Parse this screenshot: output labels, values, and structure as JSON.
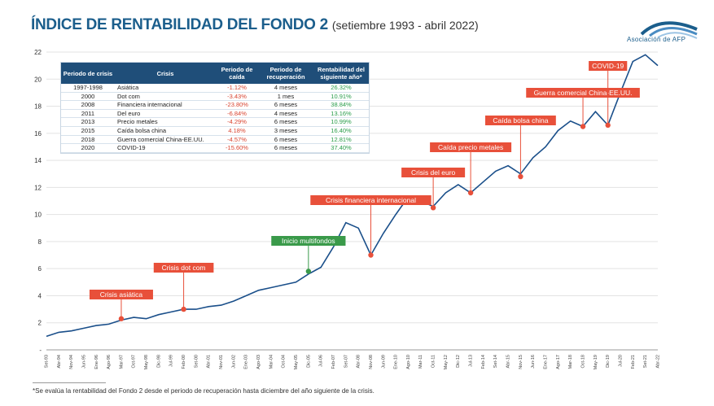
{
  "header": {
    "title": "ÍNDICE DE RENTABILIDAD DEL FONDO 2",
    "subtitle": "(setiembre 1993 - abril 2022)",
    "logo_text": "Asociación de AFP"
  },
  "table": {
    "headers": [
      "Periodo de crisis",
      "Crisis",
      "Periodo de caída",
      "Periodo de recuperación",
      "Rentabilidad del siguiente año*"
    ],
    "rows": [
      [
        "1997-1998",
        "Asiática",
        "-1.12%",
        "4 meses",
        "26.32%"
      ],
      [
        "2000",
        "Dot com",
        "-3.43%",
        "1 mes",
        "10.91%"
      ],
      [
        "2008",
        "Financiera internacional",
        "-23.80%",
        "6 meses",
        "38.84%"
      ],
      [
        "2011",
        "Del euro",
        "-6.84%",
        "4 meses",
        "13.16%"
      ],
      [
        "2013",
        "Precio metales",
        "-4.29%",
        "6 meses",
        "10.99%"
      ],
      [
        "2015",
        "Caída bolsa china",
        "4.18%",
        "3 meses",
        "16.40%"
      ],
      [
        "2018",
        "Guerra comercial China-EE.UU.",
        "-4.57%",
        "6 meses",
        "12.81%"
      ],
      [
        "2020",
        "COVID-19",
        "-15.60%",
        "6 meses",
        "37.40%"
      ]
    ]
  },
  "footnote": "*Se evalúa la rentabilidad del Fondo 2 desde el periodo de recuperación hasta diciembre del año siguiente de la crisis.",
  "colors": {
    "line": "#1a4f8a",
    "crisis": "#e8503a",
    "multifondos": "#3a9a4a",
    "header": "#1f4e79"
  },
  "chart_data": {
    "type": "line",
    "title": "ÍNDICE DE RENTABILIDAD DEL FONDO 2",
    "ylim": [
      0,
      22
    ],
    "y_ticks": [
      "-",
      "2",
      "4",
      "6",
      "8",
      "10",
      "12",
      "14",
      "16",
      "18",
      "20",
      "22"
    ],
    "x_ticks": [
      "Set-93",
      "Abr-94",
      "Nov-94",
      "Jun-95",
      "Ene-96",
      "Ago-96",
      "Mar-97",
      "Oct-97",
      "May-98",
      "Dic-98",
      "Jul-99",
      "Feb-00",
      "Set-00",
      "Abr-01",
      "Nov-01",
      "Jun-02",
      "Ene-03",
      "Ago-03",
      "Mar-04",
      "Oct-04",
      "May-05",
      "Dic-05",
      "Jul-06",
      "Feb-07",
      "Set-07",
      "Abr-08",
      "Nov-08",
      "Jun-09",
      "Ene-10",
      "Ago-10",
      "Mar-11",
      "Oct-11",
      "May-12",
      "Dic-12",
      "Jul-13",
      "Feb-14",
      "Set-14",
      "Abr-15",
      "Nov-15",
      "Jun-16",
      "Ene-17",
      "Ago-17",
      "Mar-18",
      "Oct-18",
      "May-19",
      "Dic-19",
      "Jul-20",
      "Feb-21",
      "Set-21",
      "Abr-22"
    ],
    "grid": true,
    "series": [
      {
        "x": [
          "Set-93",
          "Abr-94",
          "Nov-94",
          "Jun-95",
          "Ene-96",
          "Ago-96",
          "Mar-97",
          "Oct-97",
          "May-98",
          "Dic-98",
          "Jul-99",
          "Feb-00",
          "Set-00",
          "Abr-01",
          "Nov-01",
          "Jun-02",
          "Ene-03",
          "Ago-03",
          "Mar-04",
          "Oct-04",
          "May-05",
          "Dic-05",
          "Jul-06",
          "Feb-07",
          "Set-07",
          "Abr-08",
          "Nov-08",
          "Jun-09",
          "Ene-10",
          "Ago-10",
          "Mar-11",
          "Oct-11",
          "May-12",
          "Dic-12",
          "Jul-13",
          "Feb-14",
          "Set-14",
          "Abr-15",
          "Nov-15",
          "Jun-16",
          "Ene-17",
          "Ago-17",
          "Mar-18",
          "Oct-18",
          "May-19",
          "Dic-19",
          "Jul-20",
          "Feb-21",
          "Set-21",
          "Abr-22"
        ],
        "values": [
          1.0,
          1.3,
          1.4,
          1.6,
          1.8,
          1.9,
          2.2,
          2.4,
          2.3,
          2.6,
          2.8,
          3.0,
          3.0,
          3.2,
          3.3,
          3.6,
          4.0,
          4.4,
          4.6,
          4.8,
          5.0,
          5.6,
          6.1,
          7.6,
          9.4,
          9.0,
          7.0,
          8.6,
          10.0,
          11.3,
          11.0,
          10.6,
          11.6,
          12.2,
          11.6,
          12.4,
          13.2,
          13.6,
          13.0,
          14.2,
          15.0,
          16.2,
          16.9,
          16.5,
          17.6,
          16.6,
          19.0,
          21.3,
          21.8,
          21.0
        ]
      }
    ],
    "markers": [
      {
        "label": "Crisis asiática",
        "x": "Mar-97",
        "y": 2.3,
        "color": "#e8503a"
      },
      {
        "label": "Crisis dot com",
        "x": "Feb-00",
        "y": 3.0,
        "color": "#e8503a"
      },
      {
        "label": "Inicio multifondos",
        "x": "Dic-05",
        "y": 5.8,
        "color": "#3a9a4a"
      },
      {
        "label": "Crisis financiera internacional",
        "x": "Nov-08",
        "y": 7.0,
        "color": "#e8503a"
      },
      {
        "label": "Crisis del euro",
        "x": "Oct-11",
        "y": 10.5,
        "color": "#e8503a"
      },
      {
        "label": "Caída precio metales",
        "x": "Jul-13",
        "y": 11.6,
        "color": "#e8503a"
      },
      {
        "label": "Caída bolsa china",
        "x": "Nov-15",
        "y": 12.8,
        "color": "#e8503a"
      },
      {
        "label": "Guerra comercial China-EE.UU.",
        "x": "Oct-18",
        "y": 16.5,
        "color": "#e8503a"
      },
      {
        "label": "COVID-19",
        "x": "Dic-19",
        "y": 16.6,
        "color": "#e8503a"
      }
    ]
  }
}
